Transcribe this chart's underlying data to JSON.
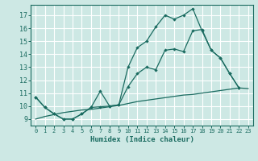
{
  "xlabel": "Humidex (Indice chaleur)",
  "bg_color": "#cde8e4",
  "line_color": "#1a6b60",
  "grid_color": "#ffffff",
  "xlim": [
    -0.5,
    23.5
  ],
  "ylim": [
    8.5,
    17.8
  ],
  "xticks": [
    0,
    1,
    2,
    3,
    4,
    5,
    6,
    7,
    8,
    9,
    10,
    11,
    12,
    13,
    14,
    15,
    16,
    17,
    18,
    19,
    20,
    21,
    22,
    23
  ],
  "yticks": [
    9,
    10,
    11,
    12,
    13,
    14,
    15,
    16,
    17
  ],
  "line_bottom": {
    "x": [
      0,
      1,
      2,
      3,
      4,
      5,
      6,
      7,
      8,
      9,
      10,
      11,
      12,
      13,
      14,
      15,
      16,
      17,
      18,
      19,
      20,
      21,
      22,
      23
    ],
    "y": [
      9.0,
      9.2,
      9.35,
      9.5,
      9.6,
      9.7,
      9.75,
      9.85,
      9.95,
      10.05,
      10.2,
      10.35,
      10.45,
      10.55,
      10.65,
      10.75,
      10.85,
      10.9,
      11.0,
      11.1,
      11.2,
      11.3,
      11.4,
      11.35
    ]
  },
  "line_top": {
    "x": [
      0,
      1,
      2,
      3,
      4,
      5,
      6,
      7,
      8,
      9,
      10,
      11,
      12,
      13,
      14,
      15,
      16,
      17,
      18,
      19,
      20,
      21,
      22
    ],
    "y": [
      10.7,
      9.9,
      9.4,
      9.0,
      9.0,
      9.4,
      9.9,
      9.95,
      10.0,
      10.1,
      13.0,
      14.5,
      15.0,
      16.1,
      17.0,
      16.7,
      17.0,
      17.5,
      15.8,
      14.3,
      13.7,
      12.5,
      11.4
    ]
  },
  "line_mid": {
    "x": [
      0,
      1,
      2,
      3,
      4,
      5,
      6,
      7,
      8,
      9,
      10,
      11,
      12,
      13,
      14,
      15,
      16,
      17,
      18,
      19,
      20,
      21,
      22
    ],
    "y": [
      10.7,
      9.9,
      9.4,
      9.0,
      9.0,
      9.4,
      9.9,
      11.15,
      10.0,
      10.1,
      11.5,
      12.5,
      13.0,
      12.8,
      14.3,
      14.4,
      14.2,
      15.8,
      15.9,
      14.3,
      13.7,
      12.5,
      11.4
    ]
  }
}
